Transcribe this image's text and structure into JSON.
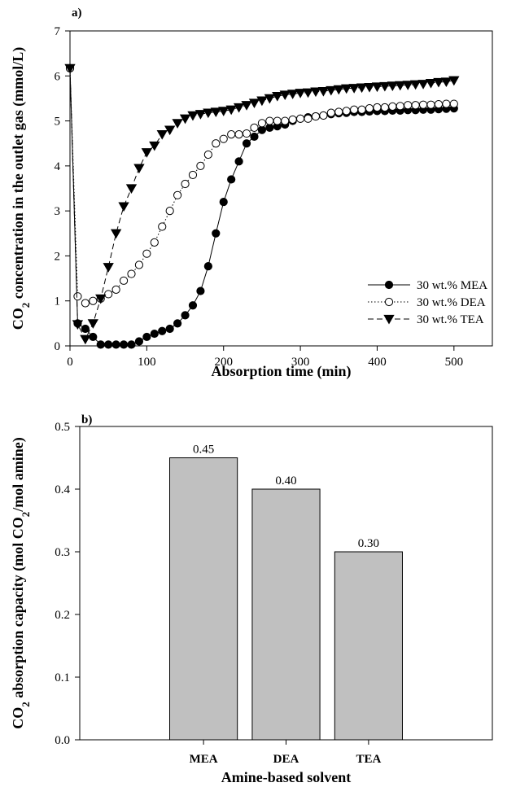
{
  "chart_data": [
    {
      "type": "line",
      "panel_label": "a)",
      "title": "",
      "xlabel": "Absorption time (min)",
      "ylabel_parts": [
        "CO",
        "2",
        " concentration in the outlet gas (mmol/L)"
      ],
      "xlim": [
        0,
        550
      ],
      "ylim": [
        0,
        7
      ],
      "xticks": [
        0,
        100,
        200,
        300,
        400,
        500
      ],
      "yticks": [
        0,
        1,
        2,
        3,
        4,
        5,
        6,
        7
      ],
      "grid": false,
      "legend_position": "center-right",
      "series": [
        {
          "name": "30 wt.% MEA",
          "marker": "filled-circle",
          "line": "solid",
          "x": [
            0,
            10,
            20,
            30,
            40,
            50,
            60,
            70,
            80,
            90,
            100,
            110,
            120,
            130,
            140,
            150,
            160,
            170,
            180,
            190,
            200,
            210,
            220,
            230,
            240,
            250,
            260,
            270,
            280,
            290,
            300,
            310,
            320,
            330,
            340,
            350,
            360,
            370,
            380,
            390,
            400,
            410,
            420,
            430,
            440,
            450,
            460,
            470,
            480,
            490,
            500
          ],
          "values": [
            6.17,
            0.5,
            0.38,
            0.2,
            0.03,
            0.03,
            0.03,
            0.03,
            0.03,
            0.1,
            0.2,
            0.27,
            0.33,
            0.38,
            0.5,
            0.68,
            0.9,
            1.22,
            1.77,
            2.5,
            3.2,
            3.7,
            4.1,
            4.5,
            4.65,
            4.8,
            4.85,
            4.88,
            4.92,
            5.0,
            5.05,
            5.08,
            5.1,
            5.12,
            5.15,
            5.17,
            5.18,
            5.2,
            5.2,
            5.21,
            5.22,
            5.22,
            5.23,
            5.23,
            5.24,
            5.24,
            5.25,
            5.25,
            5.26,
            5.27,
            5.28
          ]
        },
        {
          "name": "30 wt.% DEA",
          "marker": "open-circle",
          "line": "dotted",
          "x": [
            0,
            10,
            20,
            30,
            40,
            50,
            60,
            70,
            80,
            90,
            100,
            110,
            120,
            130,
            140,
            150,
            160,
            170,
            180,
            190,
            200,
            210,
            220,
            230,
            240,
            250,
            260,
            270,
            280,
            290,
            300,
            310,
            320,
            330,
            340,
            350,
            360,
            370,
            380,
            390,
            400,
            410,
            420,
            430,
            440,
            450,
            460,
            470,
            480,
            490,
            500
          ],
          "values": [
            6.17,
            1.1,
            0.95,
            1.0,
            1.05,
            1.15,
            1.25,
            1.45,
            1.6,
            1.8,
            2.05,
            2.3,
            2.65,
            3.0,
            3.35,
            3.6,
            3.8,
            4.0,
            4.25,
            4.5,
            4.6,
            4.7,
            4.7,
            4.72,
            4.85,
            4.95,
            5.0,
            5.0,
            5.0,
            5.03,
            5.05,
            5.05,
            5.1,
            5.12,
            5.18,
            5.2,
            5.22,
            5.25,
            5.25,
            5.28,
            5.3,
            5.3,
            5.32,
            5.33,
            5.35,
            5.35,
            5.36,
            5.36,
            5.37,
            5.38,
            5.38
          ]
        },
        {
          "name": "30 wt.% TEA",
          "marker": "filled-triangle-down",
          "line": "dashed",
          "x": [
            0,
            10,
            20,
            30,
            40,
            50,
            60,
            70,
            80,
            90,
            100,
            110,
            120,
            130,
            140,
            150,
            160,
            170,
            180,
            190,
            200,
            210,
            220,
            230,
            240,
            250,
            260,
            270,
            280,
            290,
            300,
            310,
            320,
            330,
            340,
            350,
            360,
            370,
            380,
            390,
            400,
            410,
            420,
            430,
            440,
            450,
            460,
            470,
            480,
            490,
            500
          ],
          "values": [
            6.17,
            0.48,
            0.15,
            0.5,
            1.05,
            1.75,
            2.5,
            3.1,
            3.5,
            3.95,
            4.3,
            4.45,
            4.7,
            4.8,
            4.95,
            5.05,
            5.12,
            5.15,
            5.18,
            5.2,
            5.22,
            5.25,
            5.3,
            5.35,
            5.4,
            5.45,
            5.5,
            5.55,
            5.58,
            5.6,
            5.62,
            5.63,
            5.65,
            5.66,
            5.68,
            5.7,
            5.72,
            5.73,
            5.74,
            5.75,
            5.76,
            5.77,
            5.78,
            5.79,
            5.8,
            5.81,
            5.82,
            5.84,
            5.86,
            5.87,
            5.9
          ]
        }
      ]
    },
    {
      "type": "bar",
      "panel_label": "b)",
      "title": "",
      "xlabel": "Amine-based solvent",
      "ylabel_parts": [
        "CO",
        "2",
        " absorption capacity (mol CO",
        "2",
        "/mol amine)"
      ],
      "categories": [
        "MEA",
        "DEA",
        "TEA"
      ],
      "values": [
        0.45,
        0.4,
        0.3
      ],
      "value_labels": [
        "0.45",
        "0.40",
        "0.30"
      ],
      "ylim": [
        0,
        0.5
      ],
      "yticks": [
        0.0,
        0.1,
        0.2,
        0.3,
        0.4,
        0.5
      ],
      "ytick_labels": [
        "0.0",
        "0.1",
        "0.2",
        "0.3",
        "0.4",
        "0.5"
      ],
      "bar_color": "#c0c0c0",
      "grid": false
    }
  ]
}
